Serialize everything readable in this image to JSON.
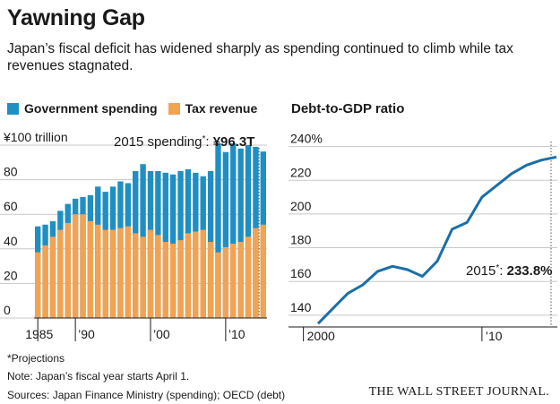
{
  "title": "Yawning Gap",
  "subtitle": "Japan’s fiscal deficit has widened sharply as spending continued to climb while tax revenues stagnated.",
  "legend": {
    "spending_label": "Government spending",
    "tax_label": "Tax revenue",
    "spending_color": "#1f8fc3",
    "tax_color": "#f2a352"
  },
  "left_annotation": {
    "prefix": "2015 spending",
    "mark": "*",
    "sep": ": ",
    "value": "¥96.3T"
  },
  "right_title": "Debt-to-GDP ratio",
  "right_annotation": {
    "prefix": "2015",
    "mark": "*",
    "sep": ": ",
    "value": "233.8%"
  },
  "footer": {
    "projections": "*Projections",
    "note": "Note: Japan’s fiscal year starts April 1.",
    "sources": "Sources: Japan Finance Ministry (spending); OECD (debt)"
  },
  "publisher": "THE WALL STREET JOURNAL.",
  "chart_data": [
    {
      "type": "bar",
      "ylim": [
        0,
        100
      ],
      "y_ticks": [
        "¥100 trillion",
        "80",
        "60",
        "40",
        "20",
        "0"
      ],
      "x_ticks": [
        "1985",
        "’90",
        "’00",
        "’10"
      ],
      "categories": [
        "1985",
        "1986",
        "1987",
        "1988",
        "1989",
        "1990",
        "1991",
        "1992",
        "1993",
        "1994",
        "1995",
        "1996",
        "1997",
        "1998",
        "1999",
        "2000",
        "2001",
        "2002",
        "2003",
        "2004",
        "2005",
        "2006",
        "2007",
        "2008",
        "2009",
        "2010",
        "2011",
        "2012",
        "2013",
        "2014",
        "2015"
      ],
      "series": [
        {
          "name": "Government spending",
          "values": [
            53,
            54,
            56,
            62,
            66,
            69,
            70,
            71,
            76,
            73,
            76,
            79,
            78,
            85,
            89,
            85,
            85,
            84,
            83,
            85,
            86,
            84,
            82,
            85,
            101,
            96,
            101,
            98,
            100,
            99,
            96.3
          ]
        },
        {
          "name": "Tax revenue",
          "values": [
            38,
            42,
            47,
            51,
            55,
            60,
            60,
            56,
            54,
            51,
            51,
            52,
            53,
            49,
            47,
            51,
            48,
            44,
            43,
            45,
            49,
            50,
            51,
            44,
            38,
            41,
            43,
            44,
            47,
            52,
            54
          ]
        }
      ]
    },
    {
      "type": "line",
      "ylim": [
        133,
        243
      ],
      "y_ticks": [
        "240%",
        "220",
        "200",
        "180",
        "160",
        "140"
      ],
      "x_ticks": [
        "2000",
        "’10"
      ],
      "x": [
        1999,
        2000,
        2001,
        2002,
        2003,
        2004,
        2005,
        2006,
        2007,
        2008,
        2009,
        2010,
        2011,
        2012,
        2013,
        2014,
        2015
      ],
      "series": [
        {
          "name": "Debt-to-GDP ratio",
          "values": [
            135,
            144,
            153,
            158,
            166,
            169,
            167,
            163,
            172,
            191,
            195,
            210,
            217,
            224,
            229,
            232,
            233.8
          ]
        }
      ]
    }
  ]
}
